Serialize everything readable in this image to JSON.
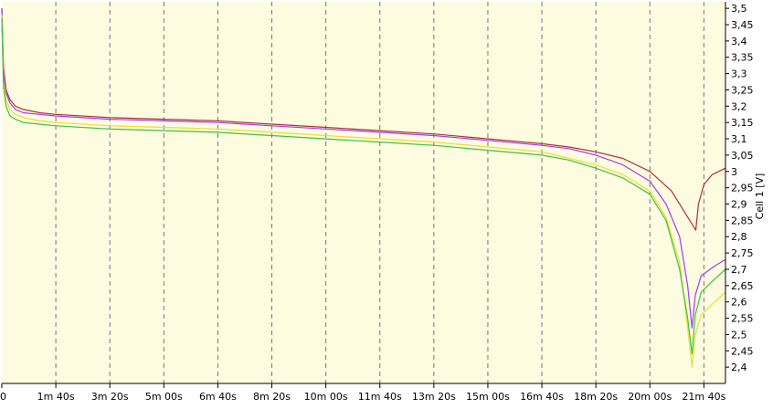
{
  "chart_data": {
    "type": "line",
    "title": "",
    "xlabel": "",
    "ylabel": "Cell 1 [V]",
    "x_unit": "seconds",
    "xlim": [
      0,
      1340
    ],
    "ylim": [
      2.35,
      3.52
    ],
    "grid": "vertical-dashed",
    "plot_background": "#fdfbe0",
    "x_ticks": [
      {
        "value": 0,
        "label": "0"
      },
      {
        "value": 100,
        "label": "1m 40s"
      },
      {
        "value": 200,
        "label": "3m 20s"
      },
      {
        "value": 300,
        "label": "5m 00s"
      },
      {
        "value": 400,
        "label": "6m 40s"
      },
      {
        "value": 500,
        "label": "8m 20s"
      },
      {
        "value": 600,
        "label": "10m 00s"
      },
      {
        "value": 700,
        "label": "11m 40s"
      },
      {
        "value": 800,
        "label": "13m 20s"
      },
      {
        "value": 900,
        "label": "15m 00s"
      },
      {
        "value": 1000,
        "label": "16m 40s"
      },
      {
        "value": 1100,
        "label": "18m 20s"
      },
      {
        "value": 1200,
        "label": "20m 00s"
      },
      {
        "value": 1300,
        "label": "21m 40s"
      }
    ],
    "y_ticks": [
      {
        "value": 3.5,
        "label": "3,5"
      },
      {
        "value": 3.45,
        "label": "3,45"
      },
      {
        "value": 3.4,
        "label": "3,4"
      },
      {
        "value": 3.35,
        "label": "3,35"
      },
      {
        "value": 3.3,
        "label": "3,3"
      },
      {
        "value": 3.25,
        "label": "3,25"
      },
      {
        "value": 3.2,
        "label": "3,2"
      },
      {
        "value": 3.15,
        "label": "3,15"
      },
      {
        "value": 3.1,
        "label": "3,1"
      },
      {
        "value": 3.05,
        "label": "3,05"
      },
      {
        "value": 3.0,
        "label": "3"
      },
      {
        "value": 2.95,
        "label": "2,95"
      },
      {
        "value": 2.9,
        "label": "2,9"
      },
      {
        "value": 2.85,
        "label": "2,85"
      },
      {
        "value": 2.8,
        "label": "2,8"
      },
      {
        "value": 2.75,
        "label": "2,75"
      },
      {
        "value": 2.7,
        "label": "2,7"
      },
      {
        "value": 2.65,
        "label": "2,65"
      },
      {
        "value": 2.6,
        "label": "2,6"
      },
      {
        "value": 2.55,
        "label": "2,55"
      },
      {
        "value": 2.5,
        "label": "2,5"
      },
      {
        "value": 2.45,
        "label": "2,45"
      },
      {
        "value": 2.4,
        "label": "2,4"
      }
    ],
    "series": [
      {
        "color": "#b03040",
        "x": [
          0,
          3,
          8,
          15,
          25,
          40,
          70,
          100,
          200,
          300,
          400,
          500,
          600,
          700,
          800,
          900,
          1000,
          1050,
          1100,
          1150,
          1200,
          1240,
          1270,
          1285,
          1290,
          1300,
          1315,
          1340
        ],
        "y": [
          3.5,
          3.32,
          3.25,
          3.22,
          3.2,
          3.19,
          3.18,
          3.175,
          3.165,
          3.16,
          3.155,
          3.145,
          3.135,
          3.125,
          3.115,
          3.1,
          3.085,
          3.075,
          3.06,
          3.04,
          3.0,
          2.94,
          2.86,
          2.82,
          2.9,
          2.96,
          2.99,
          3.01
        ]
      },
      {
        "color": "#a040e0",
        "x": [
          0,
          3,
          8,
          15,
          25,
          40,
          70,
          100,
          200,
          300,
          400,
          500,
          600,
          700,
          800,
          900,
          1000,
          1050,
          1100,
          1150,
          1200,
          1230,
          1255,
          1270,
          1278,
          1284,
          1295,
          1320,
          1340
        ],
        "y": [
          3.5,
          3.3,
          3.24,
          3.21,
          3.19,
          3.18,
          3.175,
          3.17,
          3.16,
          3.155,
          3.15,
          3.14,
          3.13,
          3.12,
          3.11,
          3.095,
          3.08,
          3.07,
          3.05,
          3.02,
          2.97,
          2.9,
          2.8,
          2.65,
          2.52,
          2.62,
          2.68,
          2.71,
          2.73
        ]
      },
      {
        "color": "#e6e030",
        "x": [
          0,
          3,
          8,
          15,
          25,
          40,
          70,
          100,
          200,
          300,
          400,
          500,
          600,
          700,
          800,
          900,
          1000,
          1050,
          1100,
          1150,
          1200,
          1230,
          1255,
          1270,
          1278,
          1284,
          1295,
          1320,
          1340
        ],
        "y": [
          3.48,
          3.28,
          3.22,
          3.19,
          3.175,
          3.165,
          3.155,
          3.15,
          3.14,
          3.135,
          3.13,
          3.12,
          3.11,
          3.1,
          3.09,
          3.075,
          3.06,
          3.04,
          3.02,
          2.99,
          2.94,
          2.86,
          2.72,
          2.52,
          2.4,
          2.5,
          2.56,
          2.6,
          2.63
        ]
      },
      {
        "color": "#40c040",
        "x": [
          0,
          3,
          8,
          15,
          25,
          40,
          70,
          100,
          200,
          300,
          400,
          500,
          600,
          700,
          800,
          900,
          1000,
          1050,
          1100,
          1150,
          1200,
          1230,
          1255,
          1270,
          1278,
          1284,
          1295,
          1320,
          1340
        ],
        "y": [
          3.47,
          3.26,
          3.2,
          3.17,
          3.16,
          3.15,
          3.145,
          3.14,
          3.13,
          3.125,
          3.12,
          3.11,
          3.1,
          3.09,
          3.08,
          3.065,
          3.05,
          3.035,
          3.01,
          2.98,
          2.93,
          2.85,
          2.7,
          2.55,
          2.44,
          2.56,
          2.63,
          2.67,
          2.7
        ]
      }
    ]
  }
}
